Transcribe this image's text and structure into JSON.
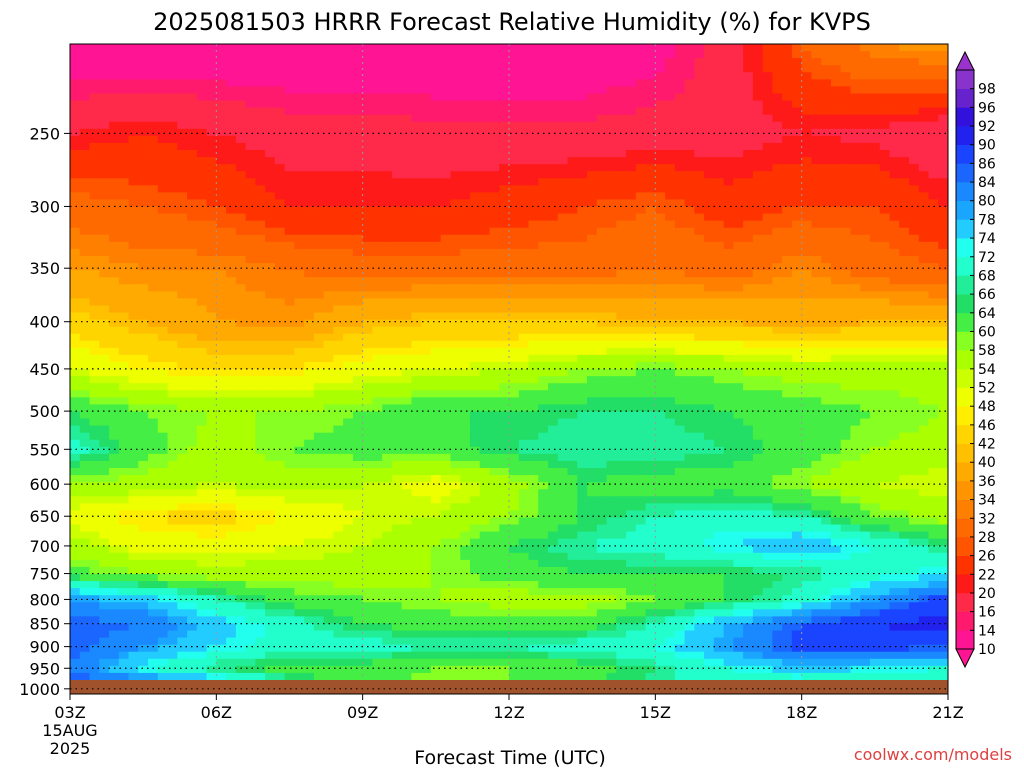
{
  "chart_data": {
    "type": "heatmap",
    "title": "2025081503 HRRR Forecast Relative Humidity (%) for KVPS",
    "xlabel": "Forecast Time (UTC)",
    "ylabel": "",
    "x_ticks": [
      "03Z",
      "06Z",
      "09Z",
      "12Z",
      "15Z",
      "18Z",
      "21Z"
    ],
    "x_tick_hours": [
      3,
      6,
      9,
      12,
      15,
      18,
      21
    ],
    "x_start_label": [
      "15AUG",
      "2025"
    ],
    "xlim": [
      3,
      21
    ],
    "y_ticks": [
      250,
      300,
      350,
      400,
      450,
      500,
      550,
      600,
      650,
      700,
      750,
      800,
      850,
      900,
      950,
      1000
    ],
    "ylim": [
      1013,
      200
    ],
    "y_scale": "log",
    "grid": true,
    "colorbar_values": [
      10,
      14,
      16,
      20,
      22,
      26,
      28,
      32,
      34,
      36,
      40,
      42,
      46,
      48,
      52,
      54,
      58,
      60,
      64,
      66,
      68,
      72,
      74,
      78,
      80,
      84,
      86,
      90,
      92,
      96,
      98
    ],
    "colorbar_colors": [
      "#ff1493",
      "#ff1a6e",
      "#ff2a4a",
      "#ff1a1a",
      "#ff3300",
      "#ff5500",
      "#ff6a00",
      "#ff8000",
      "#ff9400",
      "#ffaa00",
      "#ffc000",
      "#ffd500",
      "#ffee00",
      "#eeff00",
      "#ccff00",
      "#aaff00",
      "#88ff22",
      "#44ee44",
      "#22dd66",
      "#22ee99",
      "#22ffcc",
      "#22ffee",
      "#22ccff",
      "#1aa6ff",
      "#1a88ff",
      "#1a66ff",
      "#1a44ff",
      "#2222ee",
      "#3311dd",
      "#6622cc",
      "#8833cc"
    ],
    "humidity_grid": {
      "hours": [
        3,
        4.5,
        6,
        7.5,
        9,
        10.5,
        12,
        13.5,
        15,
        16.5,
        18,
        19.5,
        21
      ],
      "levels": [
        200,
        250,
        300,
        350,
        400,
        450,
        500,
        550,
        600,
        650,
        700,
        750,
        800,
        850,
        900,
        950,
        1000
      ],
      "rh": [
        [
          10,
          10,
          10,
          10,
          10,
          10,
          10,
          10,
          12,
          18,
          28,
          34,
          36
        ],
        [
          20,
          22,
          20,
          18,
          18,
          17,
          17,
          17,
          18,
          18,
          20,
          19,
          16
        ],
        [
          30,
          28,
          26,
          22,
          22,
          22,
          24,
          26,
          28,
          24,
          26,
          26,
          22
        ],
        [
          36,
          34,
          34,
          32,
          30,
          30,
          30,
          30,
          32,
          30,
          34,
          30,
          28
        ],
        [
          44,
          40,
          36,
          35,
          40,
          42,
          42,
          42,
          40,
          40,
          38,
          40,
          40
        ],
        [
          52,
          48,
          45,
          46,
          50,
          52,
          54,
          58,
          60,
          58,
          56,
          56,
          56
        ],
        [
          64,
          60,
          58,
          58,
          60,
          64,
          64,
          66,
          66,
          64,
          62,
          60,
          58
        ],
        [
          70,
          62,
          56,
          60,
          62,
          62,
          66,
          68,
          68,
          66,
          62,
          58,
          56
        ],
        [
          58,
          56,
          54,
          56,
          54,
          50,
          56,
          64,
          62,
          62,
          58,
          54,
          52
        ],
        [
          50,
          46,
          44,
          48,
          52,
          54,
          58,
          64,
          68,
          70,
          68,
          60,
          56
        ],
        [
          56,
          50,
          50,
          52,
          54,
          58,
          64,
          68,
          70,
          74,
          78,
          72,
          66
        ],
        [
          62,
          58,
          56,
          56,
          56,
          58,
          62,
          64,
          64,
          64,
          66,
          70,
          74
        ],
        [
          80,
          76,
          68,
          62,
          60,
          58,
          56,
          56,
          60,
          64,
          70,
          80,
          88
        ],
        [
          86,
          84,
          76,
          70,
          64,
          62,
          62,
          62,
          68,
          78,
          86,
          90,
          92
        ],
        [
          86,
          80,
          74,
          70,
          70,
          68,
          68,
          70,
          72,
          80,
          88,
          88,
          86
        ],
        [
          84,
          72,
          66,
          62,
          62,
          60,
          60,
          62,
          66,
          72,
          76,
          74,
          72
        ],
        [
          88,
          90,
          84,
          70,
          62,
          58,
          60,
          64,
          68,
          70,
          66,
          64,
          64
        ]
      ]
    },
    "colors": {
      "ground": "#a0522d",
      "gridline": "#000000"
    }
  },
  "credit": "coolwx.com/models"
}
